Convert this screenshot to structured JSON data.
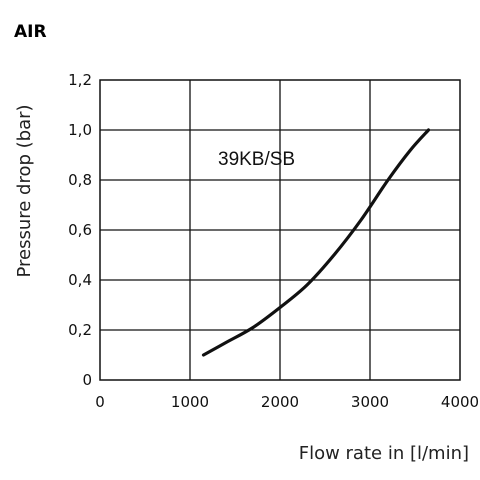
{
  "chart_data": {
    "type": "line",
    "title": "AIR",
    "xlabel": "Flow rate in [l/min]",
    "ylabel": "Pressure drop (bar)",
    "xlim": [
      0,
      4000
    ],
    "ylim": [
      0,
      1.2
    ],
    "x_ticks": [
      "0",
      "1000",
      "2000",
      "3000",
      "4000"
    ],
    "y_ticks": [
      "0",
      "0,2",
      "0,4",
      "0,6",
      "0,8",
      "1,0",
      "1,2"
    ],
    "grid": true,
    "series": [
      {
        "name": "39KB/SB",
        "x": [
          1150,
          1400,
          1700,
          2000,
          2300,
          2600,
          2900,
          3200,
          3450,
          3650
        ],
        "y": [
          0.1,
          0.15,
          0.21,
          0.29,
          0.38,
          0.5,
          0.64,
          0.8,
          0.92,
          1.0
        ]
      }
    ]
  }
}
